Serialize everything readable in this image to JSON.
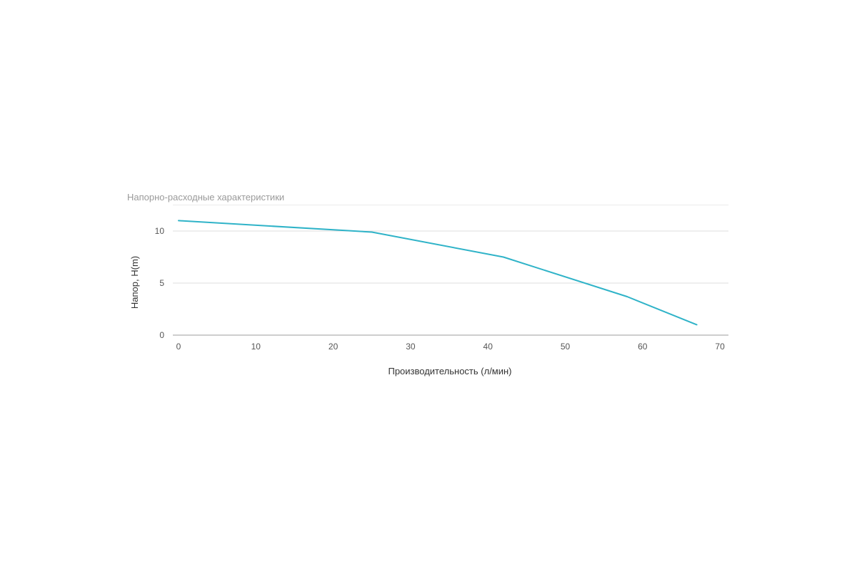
{
  "chart_data": {
    "type": "line",
    "title": "Напорно-расходные характеристики",
    "xlabel": "Производительность (л/мин)",
    "ylabel": "Напор, H(m)",
    "xlim": [
      0,
      70
    ],
    "ylim": [
      0,
      12.5
    ],
    "x_ticks": [
      "0",
      "10",
      "20",
      "30",
      "40",
      "50",
      "60",
      "70"
    ],
    "y_ticks": [
      "0",
      "5",
      "10"
    ],
    "grid": "horizontal",
    "legend": "none",
    "series": [
      {
        "color": "#2fb3c8",
        "x": [
          0,
          25,
          42,
          58,
          67
        ],
        "y": [
          11,
          9.9,
          7.5,
          3.7,
          1
        ]
      }
    ]
  }
}
